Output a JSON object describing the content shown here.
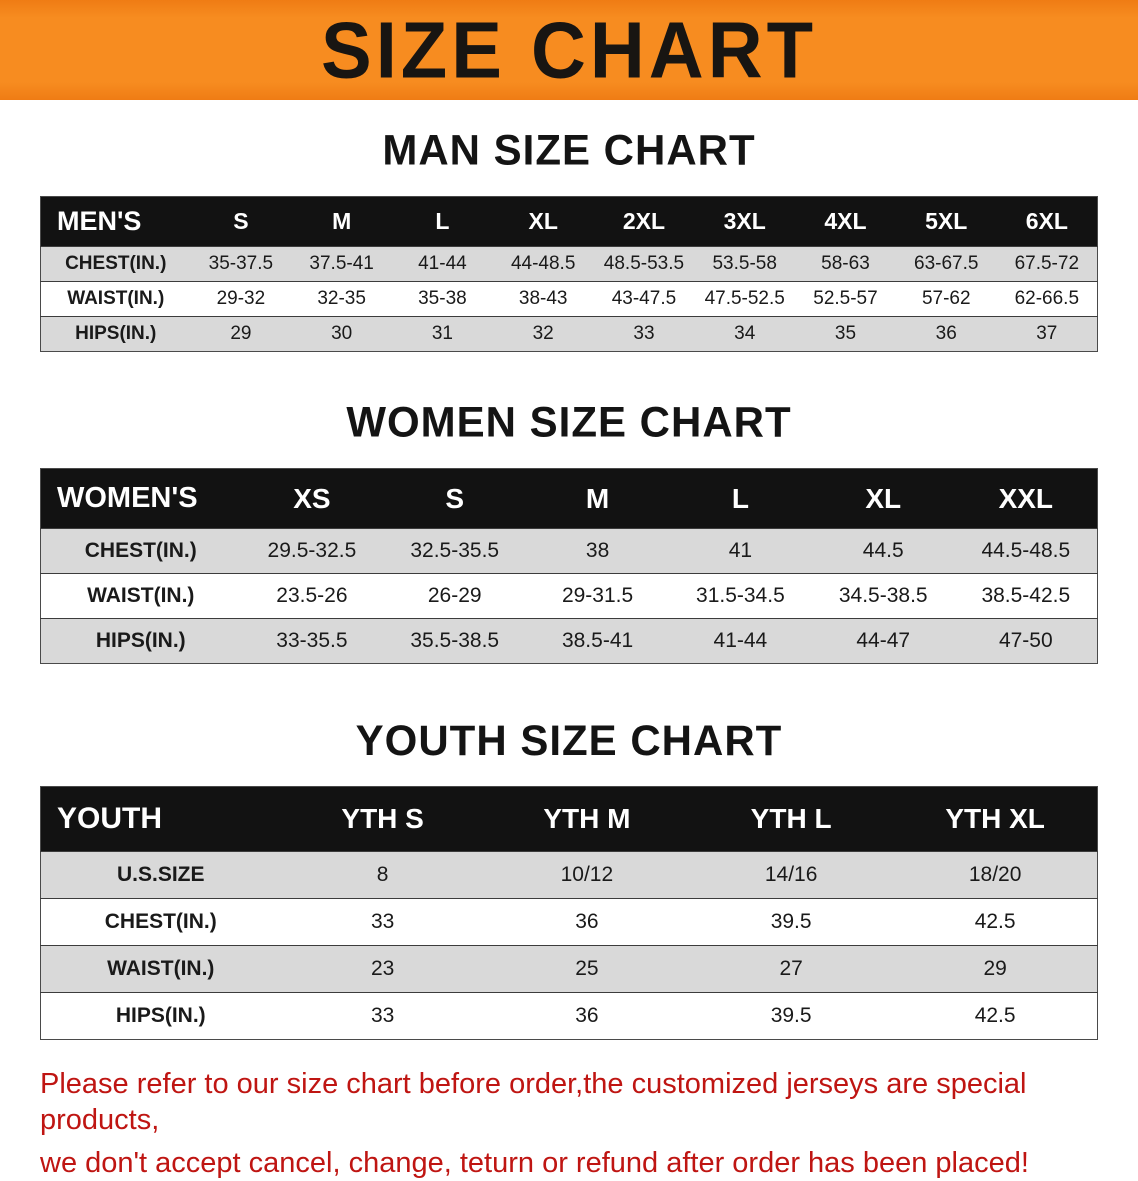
{
  "banner": {
    "title": "SIZE CHART",
    "bg_color": "#f78c20",
    "text_color": "#181512"
  },
  "sections": {
    "men": {
      "heading": "MAN SIZE CHART",
      "table": {
        "header": [
          "MEN'S",
          "S",
          "M",
          "L",
          "XL",
          "2XL",
          "3XL",
          "4XL",
          "5XL",
          "6XL"
        ],
        "rows": [
          [
            "CHEST(IN.)",
            "35-37.5",
            "37.5-41",
            "41-44",
            "44-48.5",
            "48.5-53.5",
            "53.5-58",
            "58-63",
            "63-67.5",
            "67.5-72"
          ],
          [
            "WAIST(IN.)",
            "29-32",
            "32-35",
            "35-38",
            "38-43",
            "43-47.5",
            "47.5-52.5",
            "52.5-57",
            "57-62",
            "62-66.5"
          ],
          [
            "HIPS(IN.)",
            "29",
            "30",
            "31",
            "32",
            "33",
            "34",
            "35",
            "36",
            "37"
          ]
        ]
      }
    },
    "women": {
      "heading": "WOMEN SIZE CHART",
      "table": {
        "header": [
          "WOMEN'S",
          "XS",
          "S",
          "M",
          "L",
          "XL",
          "XXL"
        ],
        "rows": [
          [
            "CHEST(IN.)",
            "29.5-32.5",
            "32.5-35.5",
            "38",
            "41",
            "44.5",
            "44.5-48.5"
          ],
          [
            "WAIST(IN.)",
            "23.5-26",
            "26-29",
            "29-31.5",
            "31.5-34.5",
            "34.5-38.5",
            "38.5-42.5"
          ],
          [
            "HIPS(IN.)",
            "33-35.5",
            "35.5-38.5",
            "38.5-41",
            "41-44",
            "44-47",
            "47-50"
          ]
        ]
      }
    },
    "youth": {
      "heading": "YOUTH SIZE CHART",
      "table": {
        "header": [
          "YOUTH",
          "YTH S",
          "YTH M",
          "YTH L",
          "YTH XL"
        ],
        "rows": [
          [
            "U.S.SIZE",
            "8",
            "10/12",
            "14/16",
            "18/20"
          ],
          [
            "CHEST(IN.)",
            "33",
            "36",
            "39.5",
            "42.5"
          ],
          [
            "WAIST(IN.)",
            "23",
            "25",
            "27",
            "29"
          ],
          [
            "HIPS(IN.)",
            "33",
            "36",
            "39.5",
            "42.5"
          ]
        ]
      }
    }
  },
  "footer": {
    "text_color": "#bf1512",
    "lines": [
      "Please refer to our size chart before order,the customized jerseys are special products,",
      "we don't accept cancel, change, teturn or refund after order has been placed!"
    ]
  }
}
